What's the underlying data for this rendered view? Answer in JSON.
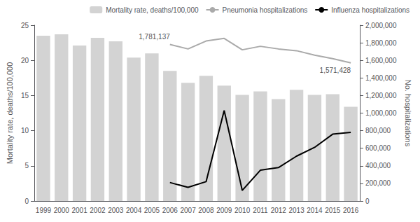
{
  "chart_data": {
    "type": "bar",
    "categories": [
      "1999",
      "2000",
      "2001",
      "2002",
      "2003",
      "2004",
      "2005",
      "2006",
      "2007",
      "2008",
      "2009",
      "2010",
      "2011",
      "2012",
      "2013",
      "2014",
      "2015",
      "2016"
    ],
    "series": [
      {
        "name": "Mortality rate, deaths/100,000",
        "type": "bar",
        "color": "#d3d3d3",
        "values": [
          23.5,
          23.7,
          22.1,
          23.2,
          22.7,
          20.4,
          21.0,
          18.5,
          16.8,
          17.8,
          16.4,
          15.1,
          15.6,
          14.5,
          15.8,
          15.1,
          15.2,
          13.4
        ]
      },
      {
        "name": "Pneumonia hospitalizations",
        "type": "line",
        "color": "#aaaaaa",
        "axis": "y2",
        "values": [
          null,
          null,
          null,
          null,
          null,
          null,
          null,
          1781137,
          1730000,
          1820000,
          1850000,
          1720000,
          1760000,
          1730000,
          1710000,
          1660000,
          1620000,
          1571428
        ]
      },
      {
        "name": "Influenza hospitalizations",
        "type": "line",
        "color": "#000000",
        "axis": "y2",
        "values": [
          null,
          null,
          null,
          null,
          null,
          null,
          null,
          210000,
          155000,
          220000,
          1030000,
          120000,
          350000,
          380000,
          510000,
          610000,
          760000,
          780000
        ]
      }
    ],
    "ylabel": "Mortality rate, deaths/100,000",
    "y2label": "No. hospitalizations",
    "ylim": [
      0,
      25
    ],
    "yticks": [
      0,
      5,
      10,
      15,
      20,
      25
    ],
    "y2lim": [
      0,
      2000000
    ],
    "y2ticks": [
      0,
      {
        "value": 200000,
        "label": "200,000"
      },
      {
        "value": 400000,
        "label": "400,000"
      },
      {
        "value": 600000,
        "label": "600,000"
      },
      {
        "value": 800000,
        "label": "800,000"
      },
      {
        "value": 1000000,
        "label": "1,000,000"
      },
      {
        "value": 1200000,
        "label": "1,200,000"
      },
      {
        "value": 1400000,
        "label": "1,400,000"
      },
      {
        "value": 1600000,
        "label": "1,600,000"
      },
      {
        "value": 1800000,
        "label": "1,800,000"
      },
      {
        "value": 2000000,
        "label": "2,000,000"
      }
    ],
    "annotations": [
      {
        "text": "1,781,137",
        "x": "2006",
        "y": 1781137,
        "axis": "y2"
      },
      {
        "text": "1,571,428",
        "x": "2016",
        "y": 1571428,
        "axis": "y2"
      }
    ],
    "legend": "upper right",
    "grid": false
  }
}
